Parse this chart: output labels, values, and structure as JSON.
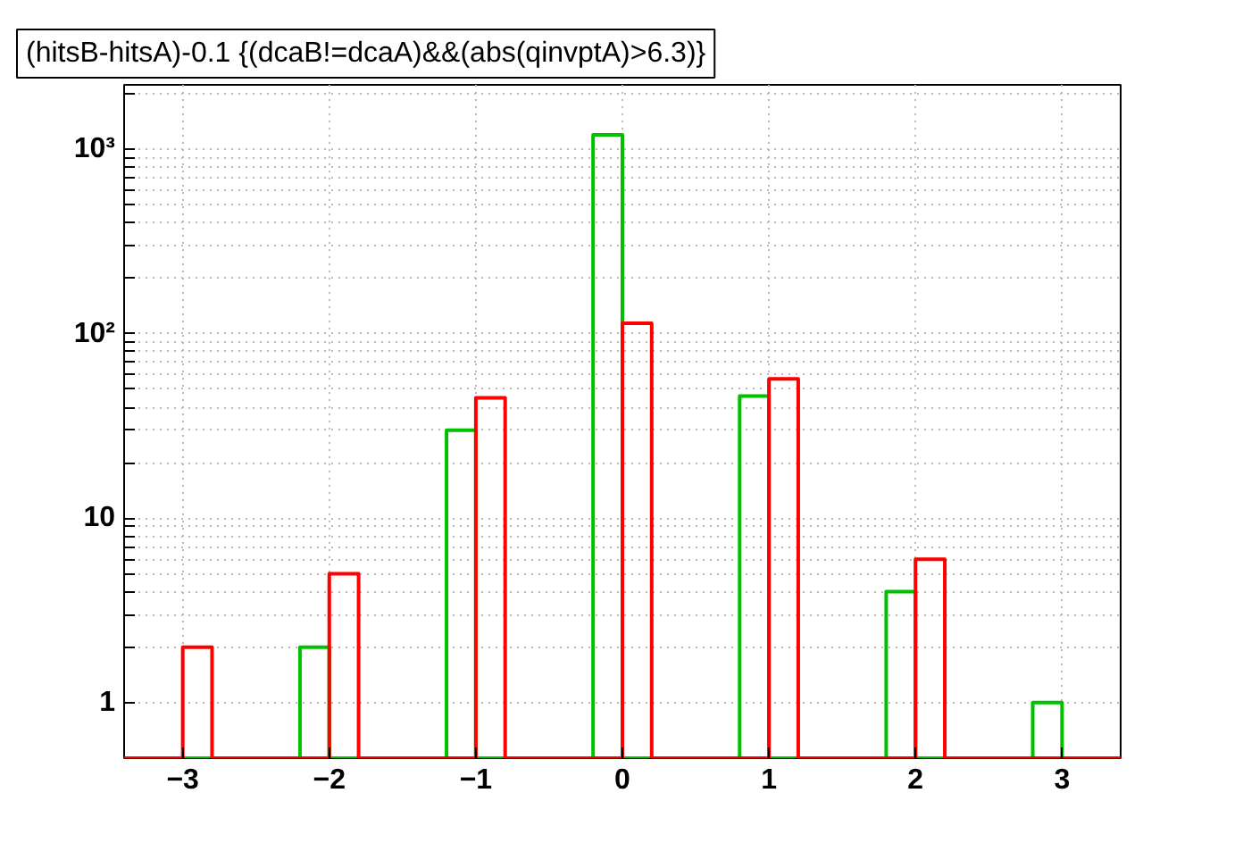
{
  "chart_data": {
    "type": "histogram",
    "title": "(hitsB-hitsA)-0.1 {(dcaB!=dcaA)&&(abs(qinvptA)>6.3)}",
    "bins": [
      -3.4,
      -3.2,
      -3.0,
      -2.8,
      -2.6,
      -2.4,
      -2.2,
      -2.0,
      -1.8,
      -1.6,
      -1.4,
      -1.2,
      -1.0,
      -0.8,
      -0.6,
      -0.4,
      -0.2,
      0.0,
      0.2,
      0.4,
      0.6,
      0.8,
      1.0,
      1.2,
      1.4,
      1.6,
      1.8,
      2.0,
      2.2,
      2.4,
      2.6,
      2.8,
      3.0,
      3.2,
      3.4
    ],
    "series": [
      {
        "color": "#00c000",
        "values": [
          null,
          null,
          null,
          null,
          null,
          null,
          2,
          null,
          null,
          null,
          null,
          30,
          null,
          null,
          null,
          null,
          1200,
          null,
          null,
          null,
          null,
          46,
          null,
          null,
          null,
          null,
          4,
          null,
          null,
          null,
          null,
          1,
          null,
          null
        ]
      },
      {
        "color": "#ff0000",
        "values": [
          null,
          null,
          2,
          null,
          null,
          null,
          null,
          5,
          null,
          null,
          null,
          null,
          45,
          null,
          null,
          null,
          null,
          114,
          null,
          null,
          null,
          null,
          57,
          null,
          null,
          null,
          null,
          6,
          null,
          null,
          null,
          null,
          null,
          null
        ]
      }
    ],
    "xlim": [
      -3.4,
      3.4
    ],
    "xticks": [
      {
        "value": -3,
        "label": "−3"
      },
      {
        "value": -2,
        "label": "−2"
      },
      {
        "value": -1,
        "label": "−1"
      },
      0,
      1,
      2,
      3
    ],
    "ylim": [
      0.5,
      2240
    ],
    "log": true,
    "grid": true,
    "yticks": [
      1,
      {
        "value": 2,
        "label": null
      },
      {
        "value": 3,
        "label": null
      },
      {
        "value": 4,
        "label": null
      },
      {
        "value": 5,
        "label": null
      },
      {
        "value": 6,
        "label": null
      },
      {
        "value": 7,
        "label": null
      },
      {
        "value": 8,
        "label": null
      },
      {
        "value": 9,
        "label": null
      },
      10,
      {
        "value": 20,
        "label": null
      },
      {
        "value": 30,
        "label": null
      },
      {
        "value": 40,
        "label": null
      },
      {
        "value": 50,
        "label": null
      },
      {
        "value": 60,
        "label": null
      },
      {
        "value": 70,
        "label": null
      },
      {
        "value": 80,
        "label": null
      },
      {
        "value": 90,
        "label": null
      },
      {
        "value": 100,
        "label": "10²"
      },
      {
        "value": 200,
        "label": null
      },
      {
        "value": 300,
        "label": null
      },
      {
        "value": 400,
        "label": null
      },
      {
        "value": 500,
        "label": null
      },
      {
        "value": 600,
        "label": null
      },
      {
        "value": 700,
        "label": null
      },
      {
        "value": 800,
        "label": null
      },
      {
        "value": 900,
        "label": null
      },
      {
        "value": 1000,
        "label": "10³"
      },
      {
        "value": 2000,
        "label": null
      }
    ]
  }
}
